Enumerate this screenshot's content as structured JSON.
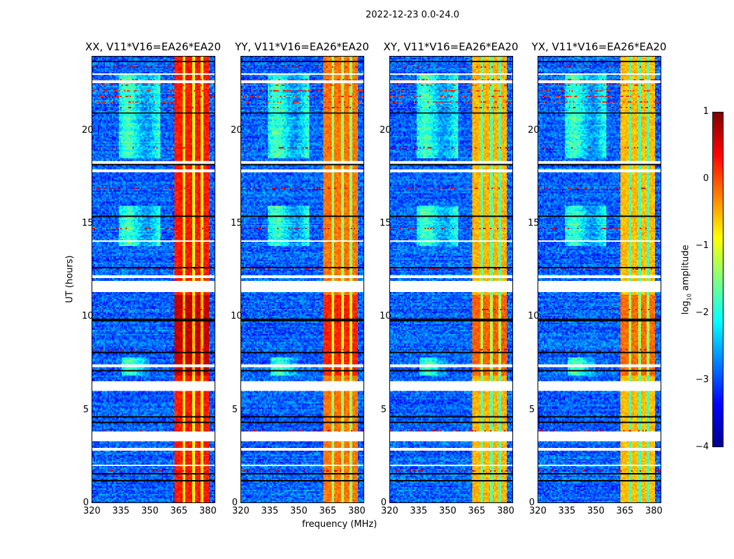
{
  "title": "2022-12-23 0.0-24.0",
  "chart_data": {
    "type": "heatmap",
    "panels": [
      {
        "title": "XX, V11*V16=EA26*EA20",
        "band_level": 0.25
      },
      {
        "title": "YY, V11*V16=EA26*EA20",
        "band_level": -0.2
      },
      {
        "title": "XY, V11*V16=EA26*EA20",
        "band_level": -0.5
      },
      {
        "title": "YX, V11*V16=EA26*EA20",
        "band_level": -0.55
      }
    ],
    "xlabel": "frequency (MHz)",
    "ylabel": "UT (hours)",
    "xlim": [
      320,
      384
    ],
    "ylim": [
      0,
      24
    ],
    "xticks": [
      "320",
      "335",
      "350",
      "365",
      "380"
    ],
    "xtick_values": [
      320,
      335,
      350,
      365,
      380
    ],
    "yticks": [
      "0",
      "5",
      "10",
      "15",
      "20"
    ],
    "ytick_values": [
      0,
      5,
      10,
      15,
      20
    ],
    "colorbar": {
      "label": "log10 amplitude",
      "range": [
        -4,
        1
      ],
      "ticks": [
        "1",
        "0",
        "−1",
        "−2",
        "−3",
        "−4"
      ],
      "tick_values": [
        1,
        0,
        -1,
        -2,
        -3,
        -4
      ],
      "colormap": "jet"
    },
    "features": {
      "rfi_band_mhz": [
        363,
        381
      ],
      "background_level": -2.9,
      "flagged_hours": [
        [
          23.0,
          23.1
        ],
        [
          22.6,
          22.7
        ],
        [
          18.2,
          18.4
        ],
        [
          17.8,
          17.9
        ],
        [
          14.0,
          14.1
        ],
        [
          12.1,
          12.2
        ],
        [
          11.3,
          11.9
        ],
        [
          7.3,
          7.4
        ],
        [
          6.0,
          6.5
        ],
        [
          3.3,
          3.8
        ],
        [
          2.8,
          2.9
        ],
        [
          1.95,
          2.0
        ]
      ],
      "broadband_blobs": [
        {
          "mhz": [
            334,
            356
          ],
          "hours": [
            18.5,
            23
          ]
        },
        {
          "mhz": [
            334,
            356
          ],
          "hours": [
            13.8,
            16
          ]
        },
        {
          "mhz": [
            335,
            350
          ],
          "hours": [
            6.8,
            7.8
          ]
        }
      ]
    }
  }
}
